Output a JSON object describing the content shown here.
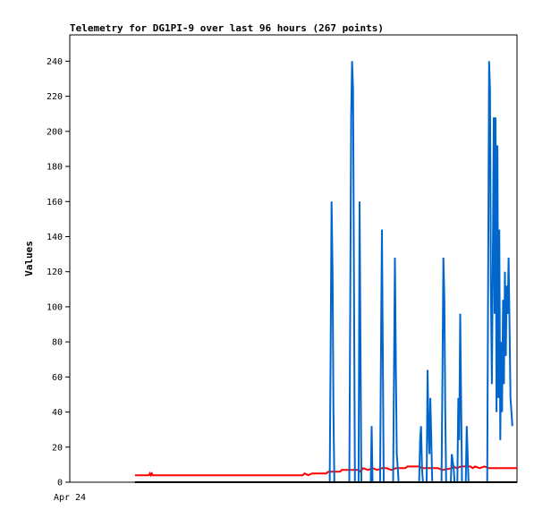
{
  "chart_data": {
    "type": "line",
    "title": "Telemetry for DG1PI-9 over last 96 hours (267 points)",
    "ylabel": "Values",
    "ylim": [
      0,
      255
    ],
    "y_ticks": [
      0,
      20,
      40,
      60,
      80,
      100,
      120,
      140,
      160,
      180,
      200,
      220,
      240
    ],
    "x_tick_labels": [
      "Apr 24"
    ],
    "xlim_hours": [
      0,
      96
    ],
    "grid": false,
    "legend": "none",
    "series": [
      {
        "color": "#0066cc",
        "points": [
          [
            55.8,
            0
          ],
          [
            56.0,
            80
          ],
          [
            56.2,
            160
          ],
          [
            56.4,
            120
          ],
          [
            56.6,
            40
          ],
          [
            56.8,
            0
          ],
          [
            60.0,
            0
          ],
          [
            60.2,
            96
          ],
          [
            60.4,
            208
          ],
          [
            60.6,
            240
          ],
          [
            60.8,
            224
          ],
          [
            61.0,
            120
          ],
          [
            61.2,
            0
          ],
          [
            62.0,
            0
          ],
          [
            62.2,
            160
          ],
          [
            62.4,
            80
          ],
          [
            62.6,
            0
          ],
          [
            64.6,
            0
          ],
          [
            64.8,
            32
          ],
          [
            65.0,
            0
          ],
          [
            66.6,
            0
          ],
          [
            66.8,
            72
          ],
          [
            67.0,
            144
          ],
          [
            67.2,
            72
          ],
          [
            67.4,
            0
          ],
          [
            69.4,
            0
          ],
          [
            69.6,
            64
          ],
          [
            69.8,
            128
          ],
          [
            70.0,
            64
          ],
          [
            70.2,
            16
          ],
          [
            70.4,
            8
          ],
          [
            70.6,
            0
          ],
          [
            75.0,
            0
          ],
          [
            75.2,
            24
          ],
          [
            75.4,
            32
          ],
          [
            75.6,
            8
          ],
          [
            75.8,
            0
          ],
          [
            76.6,
            0
          ],
          [
            76.8,
            64
          ],
          [
            77.0,
            32
          ],
          [
            77.2,
            16
          ],
          [
            77.4,
            48
          ],
          [
            77.6,
            24
          ],
          [
            77.8,
            0
          ],
          [
            79.8,
            0
          ],
          [
            80.0,
            64
          ],
          [
            80.2,
            128
          ],
          [
            80.4,
            104
          ],
          [
            80.6,
            40
          ],
          [
            80.8,
            0
          ],
          [
            81.8,
            0
          ],
          [
            82.0,
            16
          ],
          [
            82.2,
            12
          ],
          [
            82.4,
            8
          ],
          [
            82.6,
            0
          ],
          [
            83.2,
            0
          ],
          [
            83.4,
            48
          ],
          [
            83.6,
            24
          ],
          [
            83.8,
            96
          ],
          [
            84.0,
            48
          ],
          [
            84.2,
            0
          ],
          [
            85.0,
            0
          ],
          [
            85.2,
            32
          ],
          [
            85.4,
            16
          ],
          [
            85.6,
            0
          ],
          [
            89.6,
            0
          ],
          [
            89.8,
            112
          ],
          [
            90.0,
            240
          ],
          [
            90.2,
            224
          ],
          [
            90.4,
            112
          ],
          [
            90.6,
            56
          ],
          [
            90.8,
            120
          ],
          [
            91.0,
            208
          ],
          [
            91.2,
            96
          ],
          [
            91.4,
            208
          ],
          [
            91.6,
            40
          ],
          [
            91.8,
            192
          ],
          [
            92.0,
            48
          ],
          [
            92.2,
            144
          ],
          [
            92.4,
            24
          ],
          [
            92.6,
            80
          ],
          [
            92.8,
            40
          ],
          [
            93.0,
            104
          ],
          [
            93.2,
            56
          ],
          [
            93.4,
            120
          ],
          [
            93.6,
            72
          ],
          [
            93.8,
            112
          ],
          [
            94.0,
            96
          ],
          [
            94.2,
            128
          ],
          [
            94.4,
            88
          ],
          [
            94.6,
            48
          ],
          [
            94.8,
            40
          ],
          [
            95.0,
            32
          ]
        ]
      },
      {
        "color": "#ff0000",
        "points": [
          [
            14.0,
            4
          ],
          [
            17.0,
            4
          ],
          [
            17.2,
            5
          ],
          [
            17.4,
            4
          ],
          [
            17.6,
            5
          ],
          [
            17.8,
            4
          ],
          [
            50.0,
            4
          ],
          [
            50.4,
            5
          ],
          [
            51.2,
            4
          ],
          [
            52.0,
            5
          ],
          [
            55.0,
            5
          ],
          [
            55.5,
            6
          ],
          [
            58.0,
            6
          ],
          [
            58.4,
            7
          ],
          [
            62.0,
            7
          ],
          [
            62.4,
            6
          ],
          [
            63.0,
            8
          ],
          [
            64.0,
            7
          ],
          [
            65.0,
            8
          ],
          [
            66.0,
            7
          ],
          [
            67.0,
            8
          ],
          [
            68.0,
            8
          ],
          [
            69.0,
            7
          ],
          [
            70.0,
            8
          ],
          [
            72.0,
            8
          ],
          [
            72.5,
            9
          ],
          [
            75.0,
            9
          ],
          [
            75.6,
            8
          ],
          [
            77.0,
            8
          ],
          [
            79.0,
            8
          ],
          [
            80.0,
            7
          ],
          [
            82.0,
            8
          ],
          [
            82.4,
            9
          ],
          [
            83.0,
            8
          ],
          [
            84.0,
            9
          ],
          [
            86.0,
            9
          ],
          [
            86.5,
            8
          ],
          [
            87.0,
            9
          ],
          [
            88.0,
            8
          ],
          [
            89.0,
            9
          ],
          [
            90.0,
            8
          ],
          [
            91.0,
            8
          ],
          [
            93.0,
            8
          ],
          [
            96.0,
            8
          ]
        ]
      },
      {
        "color": "#000000",
        "points": [
          [
            14.0,
            0
          ],
          [
            96.0,
            0
          ]
        ]
      }
    ]
  }
}
